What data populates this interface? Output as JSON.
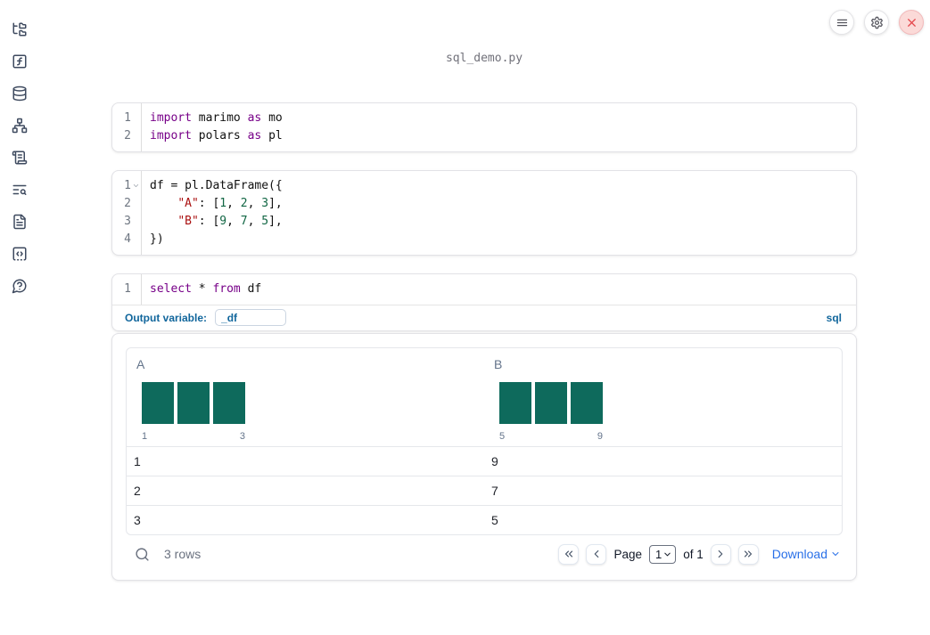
{
  "header": {
    "filename": "sql_demo.py"
  },
  "toolbar": {
    "buttons": [
      {
        "name": "notebook-menu",
        "icon": "menu-icon"
      },
      {
        "name": "settings",
        "icon": "gear-icon"
      },
      {
        "name": "shutdown",
        "icon": "close-icon"
      }
    ]
  },
  "sidebar": {
    "items": [
      {
        "name": "file-explorer",
        "icon": "folder-tree-icon"
      },
      {
        "name": "variables",
        "icon": "function-square-icon"
      },
      {
        "name": "datasources",
        "icon": "database-icon"
      },
      {
        "name": "dependencies",
        "icon": "network-icon"
      },
      {
        "name": "logs",
        "icon": "scroll-text-icon"
      },
      {
        "name": "table-of-contents",
        "icon": "text-search-icon"
      },
      {
        "name": "documentation",
        "icon": "file-text-icon"
      },
      {
        "name": "snippets",
        "icon": "code-square-icon"
      },
      {
        "name": "help",
        "icon": "message-question-icon"
      }
    ]
  },
  "cells": [
    {
      "type": "python",
      "lines": [
        {
          "n": "1",
          "tokens": [
            [
              "import",
              "kw"
            ],
            [
              " marimo ",
              "pl"
            ],
            [
              "as",
              "kw"
            ],
            [
              " mo",
              "pl"
            ]
          ]
        },
        {
          "n": "2",
          "tokens": [
            [
              "import",
              "kw"
            ],
            [
              " polars ",
              "pl"
            ],
            [
              "as",
              "kw"
            ],
            [
              " pl",
              "pl"
            ]
          ]
        }
      ]
    },
    {
      "type": "python",
      "lines": [
        {
          "n": "1",
          "fold": true,
          "tokens": [
            [
              "df = pl.DataFrame({",
              "pl"
            ]
          ]
        },
        {
          "n": "2",
          "tokens": [
            [
              "    ",
              "pl"
            ],
            [
              "\"A\"",
              "str"
            ],
            [
              ": [",
              "pl"
            ],
            [
              "1",
              "num"
            ],
            [
              ", ",
              "pl"
            ],
            [
              "2",
              "num"
            ],
            [
              ", ",
              "pl"
            ],
            [
              "3",
              "num"
            ],
            [
              "],",
              "pl"
            ]
          ]
        },
        {
          "n": "3",
          "tokens": [
            [
              "    ",
              "pl"
            ],
            [
              "\"B\"",
              "str"
            ],
            [
              ": [",
              "pl"
            ],
            [
              "9",
              "num"
            ],
            [
              ", ",
              "pl"
            ],
            [
              "7",
              "num"
            ],
            [
              ", ",
              "pl"
            ],
            [
              "5",
              "num"
            ],
            [
              "],",
              "pl"
            ]
          ]
        },
        {
          "n": "4",
          "tokens": [
            [
              "})",
              "pl"
            ]
          ]
        }
      ]
    },
    {
      "type": "sql",
      "lines": [
        {
          "n": "1",
          "tokens": [
            [
              "select",
              "kw"
            ],
            [
              " * ",
              "pl"
            ],
            [
              "from",
              "kw"
            ],
            [
              " df",
              "pl"
            ]
          ]
        }
      ],
      "footer": {
        "label": "Output variable:",
        "value": "_df",
        "language_badge": "sql"
      }
    }
  ],
  "output": {
    "columns": [
      {
        "name": "A",
        "histogram": {
          "bar_heights": [
            1,
            1,
            1
          ],
          "min_label": "1",
          "max_label": "3"
        }
      },
      {
        "name": "B",
        "histogram": {
          "bar_heights": [
            1,
            1,
            1
          ],
          "min_label": "5",
          "max_label": "9"
        }
      }
    ],
    "rows": [
      [
        "1",
        "9"
      ],
      [
        "2",
        "7"
      ],
      [
        "3",
        "5"
      ]
    ],
    "footer": {
      "row_count": "3 rows",
      "page_label": "Page",
      "page_value": "1",
      "of_label": "of 1",
      "download_label": "Download"
    }
  },
  "colors": {
    "keyword": "#770088",
    "string": "#aa1111",
    "number": "#116644",
    "histogram_bar": "#0e6a5c",
    "sql_footer_blue": "#11669c",
    "download_link_blue": "#2970e8",
    "close_button_red": "#e5484d"
  }
}
